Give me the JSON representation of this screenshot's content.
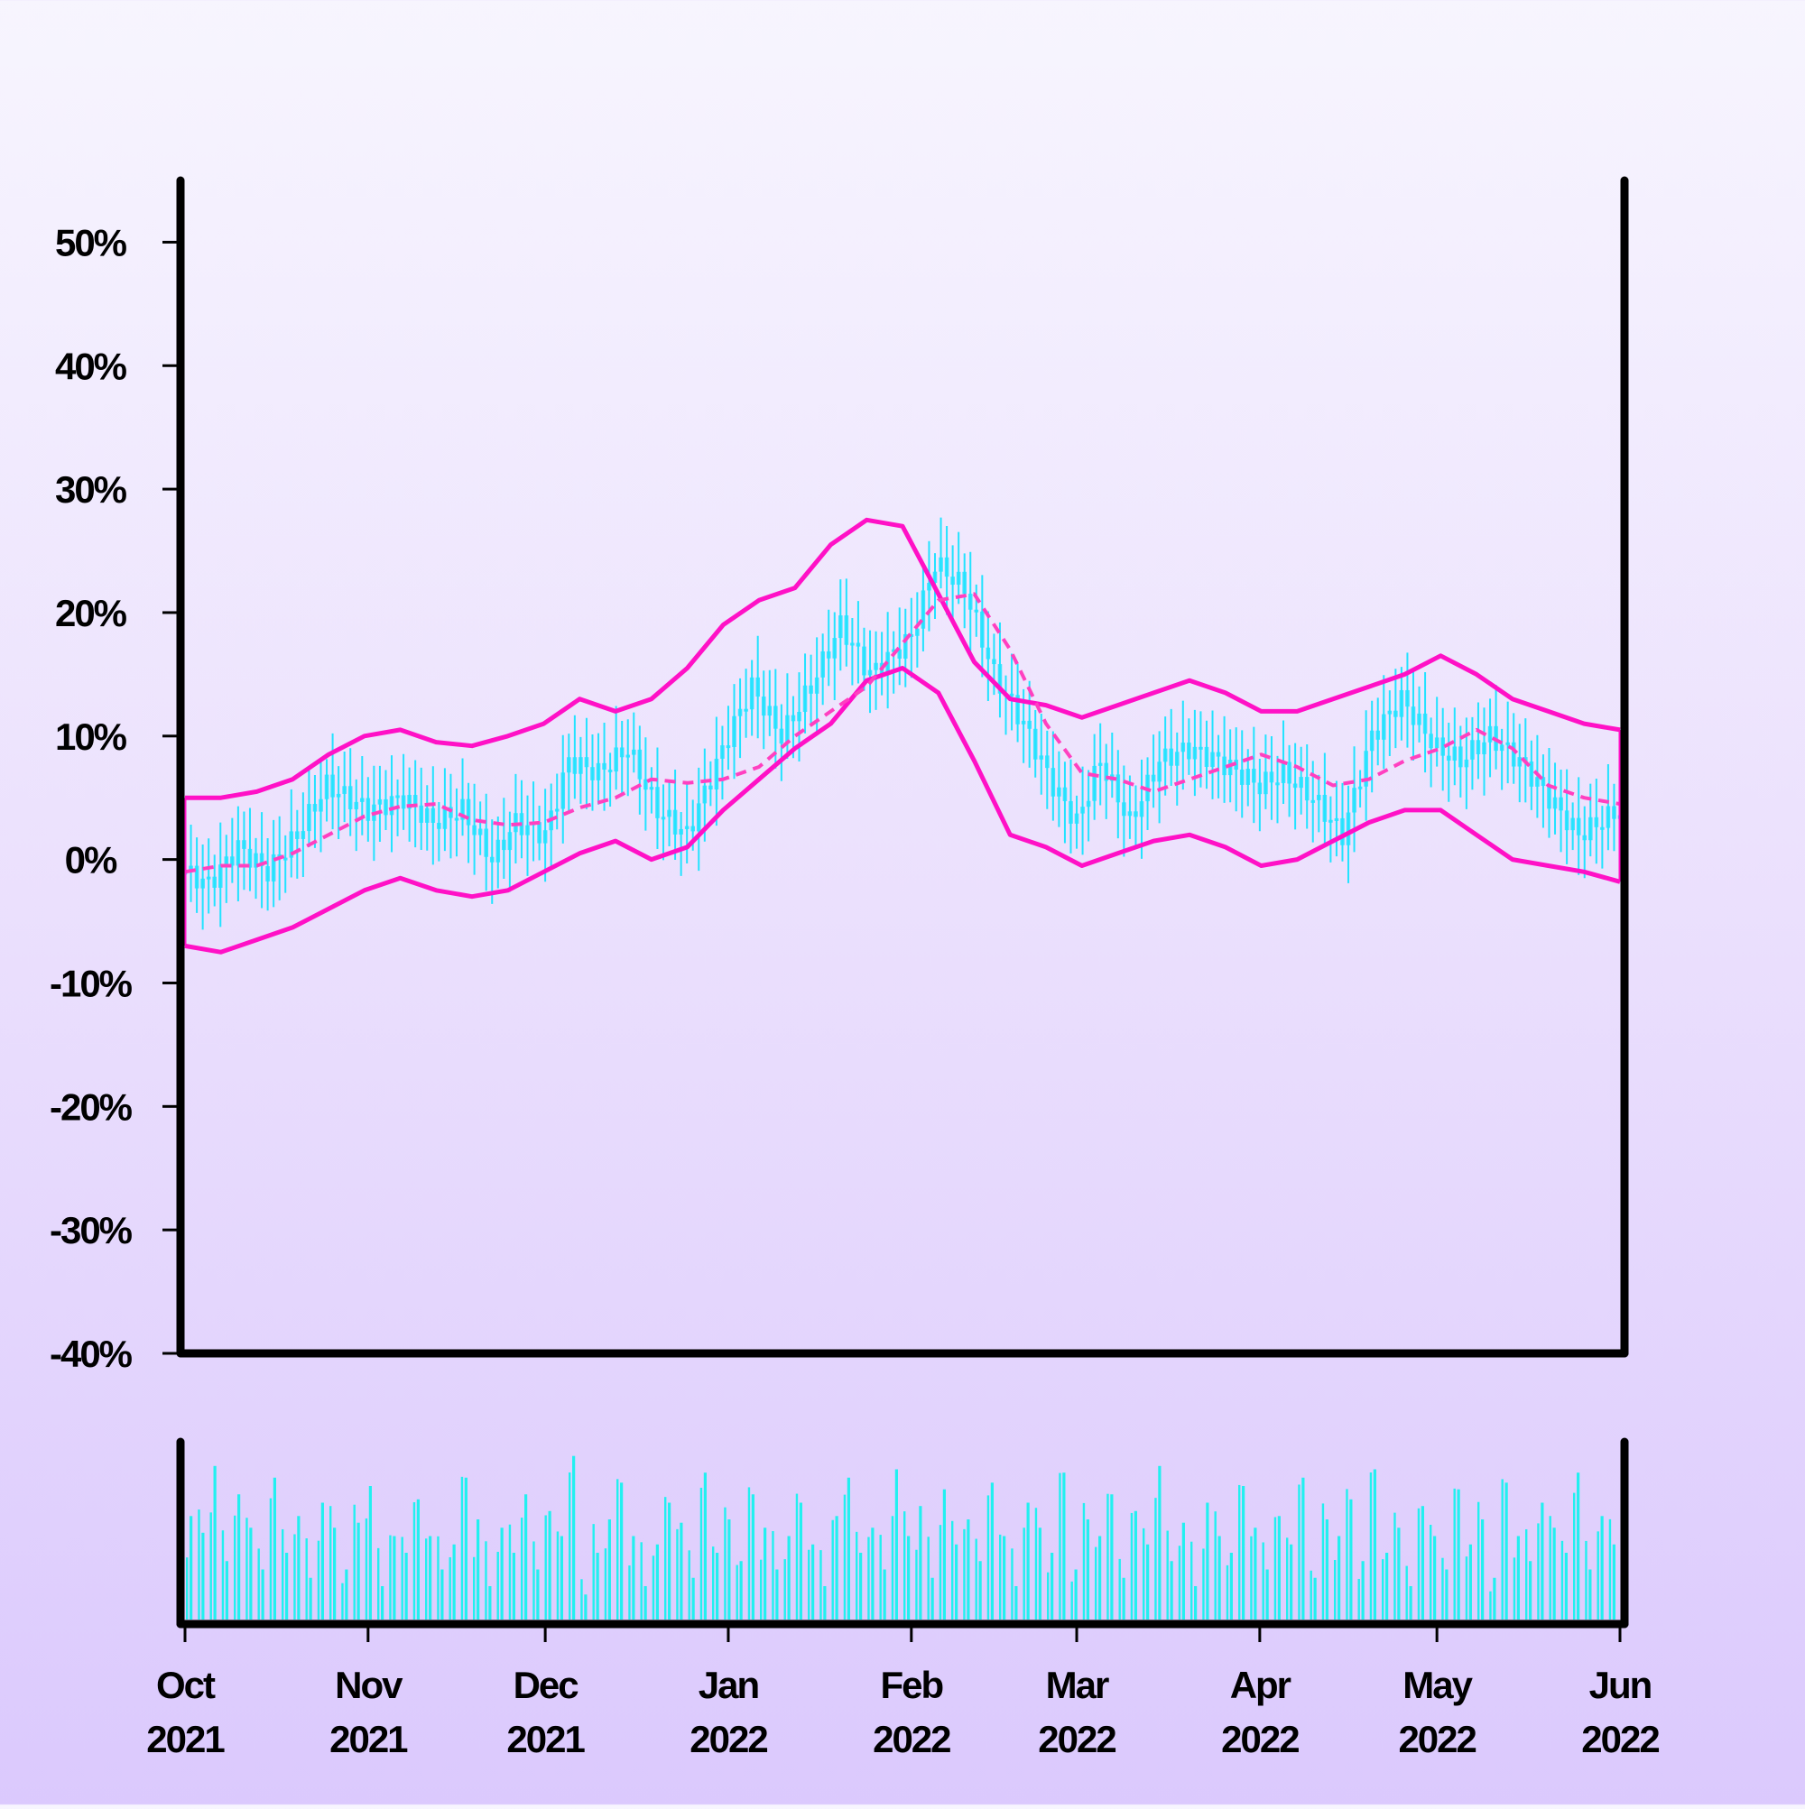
{
  "chart_data": [
    {
      "type": "candlestick",
      "title": "",
      "xlabel": "",
      "ylabel": "",
      "ylim": [
        -40,
        55
      ],
      "y_tick_values": [
        50,
        40,
        30,
        20,
        10,
        0,
        -10,
        -20,
        -30,
        -40
      ],
      "y_tick_labels": [
        "50%",
        "40%",
        "30%",
        "20%",
        "10%",
        "0%",
        "-10%",
        "-20%",
        "-30%",
        "-40%"
      ],
      "x_range": [
        "2021-10-01",
        "2022-06-01"
      ],
      "x_tick_dates": [
        "2021-10-01",
        "2021-11-01",
        "2021-12-01",
        "2022-01-01",
        "2022-02-01",
        "2022-03-01",
        "2022-04-01",
        "2022-05-01",
        "2022-06-01"
      ],
      "x_tick_labels": [
        [
          "Oct",
          "2021"
        ],
        [
          "Nov",
          "2021"
        ],
        [
          "Dec",
          "2021"
        ],
        [
          "Jan",
          "2022"
        ],
        [
          "Feb",
          "2022"
        ],
        [
          "Mar",
          "2022"
        ],
        [
          "Apr",
          "2022"
        ],
        [
          "May",
          "2022"
        ],
        [
          "Jun",
          "2022"
        ]
      ],
      "close_series": {
        "dates": [
          "2021-10-01",
          "2021-10-05",
          "2021-10-10",
          "2021-10-15",
          "2021-10-20",
          "2021-10-25",
          "2021-11-01",
          "2021-11-07",
          "2021-11-12",
          "2021-11-17",
          "2021-11-22",
          "2021-11-26",
          "2021-12-01",
          "2021-12-05",
          "2021-12-10",
          "2021-12-15",
          "2021-12-20",
          "2021-12-25",
          "2022-01-01",
          "2022-01-05",
          "2022-01-10",
          "2022-01-15",
          "2022-01-20",
          "2022-01-25",
          "2022-02-01",
          "2022-02-05",
          "2022-02-10",
          "2022-02-15",
          "2022-02-20",
          "2022-02-25",
          "2022-03-01",
          "2022-03-05",
          "2022-03-10",
          "2022-03-15",
          "2022-03-20",
          "2022-03-25",
          "2022-04-01",
          "2022-04-05",
          "2022-04-10",
          "2022-04-15",
          "2022-04-20",
          "2022-04-25",
          "2022-05-01",
          "2022-05-05",
          "2022-05-10",
          "2022-05-15",
          "2022-05-20",
          "2022-05-25",
          "2022-06-01"
        ],
        "values": [
          -1,
          -2,
          1,
          -1,
          2,
          6,
          4,
          5,
          3,
          4,
          0,
          3,
          2,
          8,
          7,
          9,
          4,
          2,
          10,
          14,
          10,
          14,
          19,
          15,
          18,
          24,
          22,
          15,
          11,
          6,
          3,
          8,
          3,
          8,
          9,
          8,
          6,
          7,
          5,
          2,
          10,
          13,
          9,
          8,
          10,
          8,
          5,
          2,
          4
        ]
      },
      "candle_color": "#22e3ff",
      "bollinger": {
        "middle": [
          -1,
          -0.5,
          -0.5,
          0.5,
          2,
          3.5,
          4.3,
          4.5,
          3.2,
          2.8,
          3,
          4.2,
          5,
          6.5,
          6.2,
          6.5,
          7.5,
          10,
          12,
          14,
          17.5,
          21,
          21.5,
          17,
          11,
          7,
          6.5,
          5.5,
          6.5,
          7.5,
          8.5,
          7.5,
          6,
          6.5,
          8,
          9,
          10.5,
          9,
          6,
          5,
          4.5
        ],
        "upper": [
          5,
          5,
          5.5,
          6.5,
          8.5,
          10,
          10.5,
          9.5,
          9.2,
          10,
          11,
          13,
          12,
          13,
          15.5,
          19,
          21,
          22,
          25.5,
          27.5,
          27,
          21.5,
          16,
          13,
          12.5,
          11.5,
          12.5,
          13.5,
          14.5,
          13.5,
          12,
          12,
          13,
          14,
          15,
          16.5,
          15,
          13,
          12,
          11,
          10.5
        ],
        "lower": [
          -7,
          -7.5,
          -6.5,
          -5.5,
          -4,
          -2.5,
          -1.5,
          -2.5,
          -3,
          -2.5,
          -1,
          0.5,
          1.5,
          0,
          1,
          4,
          6.5,
          9,
          11,
          14.5,
          15.5,
          13.5,
          8,
          2,
          1,
          -0.5,
          0.5,
          1.5,
          2,
          1,
          -0.5,
          0,
          1.5,
          3,
          4,
          4,
          2,
          0,
          -0.5,
          -1,
          -1.8
        ],
        "upper_lower_color": "#ff11c6",
        "middle_color": "#ff40c0",
        "middle_style": "dashed"
      },
      "volume": {
        "color": "#22f0f0",
        "relative_values": [
          0.62,
          0.52,
          0.92,
          0.35,
          0.75,
          0.55,
          0.3,
          0.85,
          0.4,
          0.62,
          0.25,
          0.7,
          0.55,
          0.3,
          0.58,
          0.8,
          0.2,
          0.5,
          0.4,
          0.72,
          0.5,
          0.3,
          0.45,
          0.85,
          0.6,
          0.2,
          0.55,
          0.4,
          0.75,
          0.3,
          0.65,
          0.5,
          0.98,
          0.15,
          0.4,
          0.6,
          0.82,
          0.5,
          0.2,
          0.45,
          0.7,
          0.58,
          0.25,
          0.88,
          0.4,
          0.6,
          0.35,
          0.75,
          0.55,
          0.3,
          0.5,
          0.7,
          0.45,
          0.2,
          0.62,
          0.85,
          0.4,
          0.55,
          0.3,
          0.9,
          0.5,
          0.68,
          0.25,
          0.78,
          0.45,
          0.6,
          0.35,
          0.82,
          0.5,
          0.2,
          0.7,
          0.55,
          0.4,
          0.88,
          0.3,
          0.6,
          0.5,
          0.75,
          0.25,
          0.65,
          0.45,
          0.92,
          0.35,
          0.58,
          0.2,
          0.7,
          0.5,
          0.4,
          0.8,
          0.55,
          0.3,
          0.62,
          0.45,
          0.85,
          0.25,
          0.6,
          0.5,
          0.72,
          0.35,
          0.9,
          0.4,
          0.55,
          0.2,
          0.68,
          0.5,
          0.3,
          0.78,
          0.45,
          0.6,
          0.25,
          0.82,
          0.5,
          0.35,
          0.7,
          0.55,
          0.4,
          0.88,
          0.3,
          0.62,
          0.45
        ]
      }
    }
  ]
}
